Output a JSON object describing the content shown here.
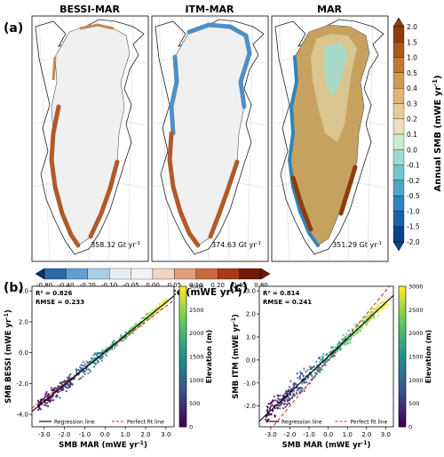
{
  "panel_labels": {
    "a": "(a)",
    "b": "(b)",
    "c": "(c)"
  },
  "maps": [
    {
      "title": "BESSI-MAR",
      "total_value": "358.32 Gt yr",
      "total_exp": "-1"
    },
    {
      "title": "ITM-MAR",
      "total_value": "374.63 Gt yr",
      "total_exp": "-1"
    },
    {
      "title": "MAR",
      "total_value": "351.29 Gt yr",
      "total_exp": "-1"
    }
  ],
  "diff_colorbar": {
    "label": "Annual SMB difference (mWE yr",
    "label_exp": "-1",
    "label_end": ")",
    "ticks": [
      "-0.80",
      "-0.40",
      "-0.20",
      "-0.10",
      "-0.05",
      "0.00",
      "0.05",
      "0.10",
      "0.20",
      "0.40",
      "0.80"
    ],
    "colors": [
      "#08306b",
      "#2b6aa6",
      "#5e9ed0",
      "#a8cde5",
      "#e6eef5",
      "#f2f2f2",
      "#f0d3c1",
      "#e0a07c",
      "#c8693f",
      "#a83a1a",
      "#6e1c08"
    ]
  },
  "smb_colorbar": {
    "label": "Annual SMB (mWE yr",
    "label_exp": "-1",
    "label_end": ")",
    "ticks": [
      "2.0",
      "1.5",
      "1.0",
      "0.5",
      "0.4",
      "0.3",
      "0.2",
      "0.1",
      "0.0",
      "-0.1",
      "-0.2",
      "-0.5",
      "-1.0",
      "-1.5",
      "-2.0"
    ],
    "colors": [
      "#8c3d0a",
      "#a8591b",
      "#be7a33",
      "#cf9a55",
      "#dcb476",
      "#e6ca98",
      "#eedfbb",
      "#c9ead0",
      "#9fdad0",
      "#76c4cc",
      "#4ea5c7",
      "#2f84bc",
      "#1c62a6",
      "#0d4388"
    ]
  },
  "scatter_colorbar": {
    "label": "Elevation (m)",
    "ticks": [
      "3000",
      "2500",
      "2000",
      "1500",
      "1000",
      "500",
      "0"
    ]
  },
  "chart_data": [
    {
      "type": "scatter",
      "panel": "(b)",
      "xlabel": "SMB MAR (mWE yr",
      "ylabel": "SMB BESSI (mWE yr",
      "label_exp": "-1",
      "xlim": [
        -3.6,
        3.4
      ],
      "ylim": [
        -4.8,
        4.3
      ],
      "xticks": [
        -3.0,
        -2.0,
        -1.0,
        0.0,
        1.0,
        2.0,
        3.0
      ],
      "xtick_labels": [
        "-3.0",
        "-2.0",
        "-1.0",
        "0.0",
        "1.0",
        "2.0",
        "3.0"
      ],
      "yticks": [
        -4.0,
        -2.0,
        0.0,
        2.0,
        4.0
      ],
      "ytick_labels": [
        "-4.0",
        "-2.0",
        "0.0",
        "2.0",
        "4.0"
      ],
      "stats": {
        "r2": "R² = 0.826",
        "rmse": "RMSE = 0.233"
      },
      "regression": {
        "slope": 1.07,
        "intercept": 0.05
      },
      "legend": {
        "regression": "Regression line",
        "perfect": "Perfect fit line"
      }
    },
    {
      "type": "scatter",
      "panel": "(c)",
      "xlabel": "SMB MAR (mWE yr",
      "ylabel": "SMB ITM (mWE yr",
      "label_exp": "-1",
      "xlim": [
        -3.6,
        3.4
      ],
      "ylim": [
        -2.9,
        3.2
      ],
      "xticks": [
        -3.0,
        -2.0,
        -1.0,
        0.0,
        1.0,
        2.0,
        3.0
      ],
      "xtick_labels": [
        "-3.0",
        "-2.0",
        "-1.0",
        "0.0",
        "1.0",
        "2.0",
        "3.0"
      ],
      "yticks": [
        -2.0,
        -1.0,
        0.0,
        1.0,
        2.0,
        3.0
      ],
      "ytick_labels": [
        "-2.0",
        "-1.0",
        "0.0",
        "1.0",
        "2.0",
        "3.0"
      ],
      "stats": {
        "r2": "R² = 0.814",
        "rmse": "RMSE = 0.241"
      },
      "regression": {
        "slope": 0.78,
        "intercept": 0.15
      },
      "legend": {
        "regression": "Regression line",
        "perfect": "Perfect fit line"
      }
    }
  ]
}
